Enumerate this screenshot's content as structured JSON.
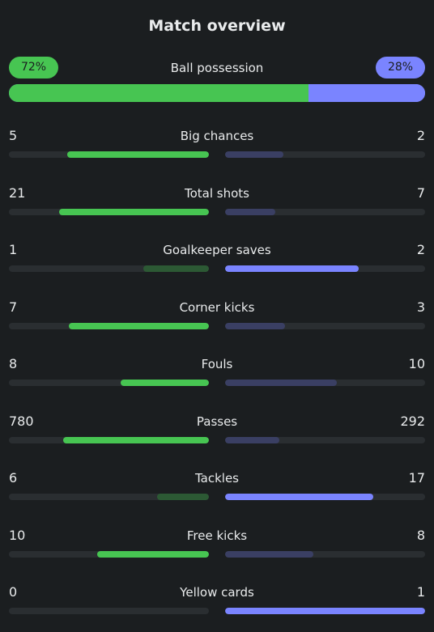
{
  "header": {
    "title": "Match overview"
  },
  "possession": {
    "label": "Ball possession",
    "home_text": "72%",
    "away_text": "28%",
    "home_fraction": 0.72
  },
  "colors": {
    "home_strong": "#47c552",
    "home_weak": "#2c5934",
    "away_strong": "#7a84ff",
    "away_weak": "#3a3f63"
  },
  "stats": [
    {
      "label": "Big chances",
      "home": "5",
      "away": "2",
      "home_fraction": 0.71,
      "away_fraction": 0.29,
      "leader": "home"
    },
    {
      "label": "Total shots",
      "home": "21",
      "away": "7",
      "home_fraction": 0.75,
      "away_fraction": 0.25,
      "leader": "home"
    },
    {
      "label": "Goalkeeper saves",
      "home": "1",
      "away": "2",
      "home_fraction": 0.33,
      "away_fraction": 0.67,
      "leader": "away"
    },
    {
      "label": "Corner kicks",
      "home": "7",
      "away": "3",
      "home_fraction": 0.7,
      "away_fraction": 0.3,
      "leader": "home"
    },
    {
      "label": "Fouls",
      "home": "8",
      "away": "10",
      "home_fraction": 0.44,
      "away_fraction": 0.56,
      "leader": "home"
    },
    {
      "label": "Passes",
      "home": "780",
      "away": "292",
      "home_fraction": 0.73,
      "away_fraction": 0.27,
      "leader": "home"
    },
    {
      "label": "Tackles",
      "home": "6",
      "away": "17",
      "home_fraction": 0.26,
      "away_fraction": 0.74,
      "leader": "away"
    },
    {
      "label": "Free kicks",
      "home": "10",
      "away": "8",
      "home_fraction": 0.56,
      "away_fraction": 0.44,
      "leader": "home"
    },
    {
      "label": "Yellow cards",
      "home": "0",
      "away": "1",
      "home_fraction": 0.0,
      "away_fraction": 1.0,
      "leader": "away"
    }
  ]
}
